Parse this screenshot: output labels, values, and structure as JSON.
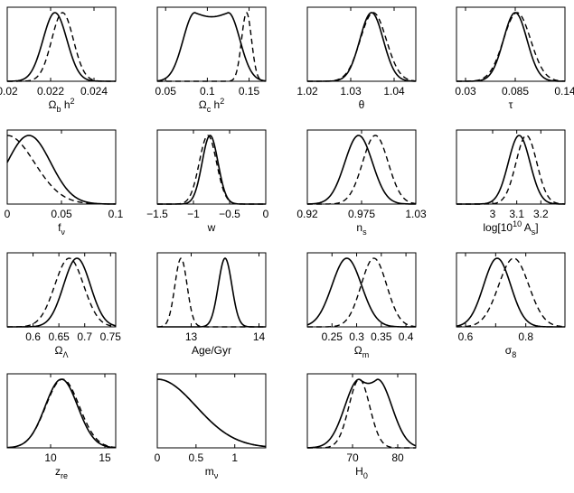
{
  "chart_data": {
    "type": "line",
    "description_series": [
      {
        "name": "",
        "style": "solid",
        "color": "#000000"
      },
      {
        "name": "",
        "style": "dashed",
        "color": "#000000"
      }
    ],
    "panels": [
      {
        "id": "omega-b-h2",
        "xlabel": "Ω_b h^2",
        "xlim": [
          0.02,
          0.025
        ],
        "ticks": [
          0.02,
          0.022,
          0.024
        ],
        "tick_labels": [
          "0.02",
          "0.022",
          "0.024"
        ],
        "solid": {
          "mu": 0.0222,
          "sigma": 0.00055
        },
        "dashed": {
          "mu": 0.02255,
          "sigma": 0.0005
        }
      },
      {
        "id": "omega-c-h2",
        "xlabel": "Ω_c h^2",
        "xlim": [
          0.04,
          0.17
        ],
        "ticks": [
          0.05,
          0.1,
          0.15
        ],
        "tick_labels": [
          "0.05",
          "0.1",
          "0.15"
        ],
        "solid": {
          "plateau": [
            0.085,
            0.125
          ],
          "sigma": 0.014
        },
        "dashed": {
          "mu": 0.147,
          "sigma": 0.006
        }
      },
      {
        "id": "theta",
        "xlabel": "θ",
        "xlim": [
          1.02,
          1.045
        ],
        "ticks": [
          1.02,
          1.03,
          1.04
        ],
        "tick_labels": [
          "1.02",
          "1.03",
          "1.04"
        ],
        "solid": {
          "mu": 1.0348,
          "sigma": 0.0027
        },
        "dashed": {
          "mu": 1.0352,
          "sigma": 0.003
        }
      },
      {
        "id": "tau",
        "xlabel": "τ",
        "xlim": [
          0.02,
          0.14
        ],
        "ticks": [
          0.03,
          0.085,
          0.14
        ],
        "tick_labels": [
          "0.03",
          "0.085",
          "0.14"
        ],
        "solid": {
          "mu": 0.085,
          "sigma": 0.013
        },
        "dashed": {
          "mu": 0.087,
          "sigma": 0.015
        }
      },
      {
        "id": "f-nu",
        "xlabel": "f_ν",
        "xlim": [
          0,
          0.1
        ],
        "ticks": [
          0,
          0.05,
          0.1
        ],
        "tick_labels": [
          "0",
          "0.05",
          "0.1"
        ],
        "solid": {
          "mu": 0.02,
          "sigma": 0.02
        },
        "dashed": {
          "mu": 0.0,
          "sigma": 0.025
        }
      },
      {
        "id": "w",
        "xlabel": "w",
        "xlim": [
          -1.5,
          0
        ],
        "ticks": [
          -1.5,
          -1,
          -0.5,
          0
        ],
        "tick_labels": [
          "−1.5",
          "−1",
          "−0.5",
          "0"
        ],
        "solid": {
          "mu": -0.77,
          "sigma": 0.11
        },
        "dashed": {
          "mu": -0.8,
          "sigma": 0.12
        }
      },
      {
        "id": "n-s",
        "xlabel": "n_s",
        "xlim": [
          0.92,
          1.03
        ],
        "ticks": [
          0.92,
          0.975,
          1.03
        ],
        "tick_labels": [
          "0.92",
          "0.975",
          "1.03"
        ],
        "solid": {
          "mu": 0.972,
          "sigma": 0.014
        },
        "dashed": {
          "mu": 0.989,
          "sigma": 0.013
        }
      },
      {
        "id": "log-as",
        "xlabel": "log[10^10 A_s]",
        "xlim": [
          2.85,
          3.3
        ],
        "ticks": [
          3.0,
          3.1,
          3.2
        ],
        "tick_labels": [
          "3",
          "3.1",
          "3.2"
        ],
        "solid": {
          "mu": 3.11,
          "sigma": 0.045
        },
        "dashed": {
          "mu": 3.14,
          "sigma": 0.043
        }
      },
      {
        "id": "omega-lambda",
        "xlabel": "Ω_Λ",
        "xlim": [
          0.55,
          0.76
        ],
        "ticks": [
          0.6,
          0.65,
          0.7,
          0.75
        ],
        "tick_labels": [
          "0.6",
          "0.65",
          "0.7",
          "0.75"
        ],
        "solid": {
          "mu": 0.685,
          "sigma": 0.026
        },
        "dashed": {
          "mu": 0.67,
          "sigma": 0.028
        }
      },
      {
        "id": "age",
        "xlabel": "Age/Gyr",
        "xlim": [
          12.5,
          14.1
        ],
        "ticks": [
          13,
          14
        ],
        "tick_labels": [
          "13",
          "14"
        ],
        "solid": {
          "mu": 13.5,
          "sigma": 0.1
        },
        "dashed": {
          "mu": 12.85,
          "sigma": 0.09
        }
      },
      {
        "id": "omega-m",
        "xlabel": "Ω_m",
        "xlim": [
          0.2,
          0.42
        ],
        "ticks": [
          0.25,
          0.3,
          0.35,
          0.4
        ],
        "tick_labels": [
          "0.25",
          "0.3",
          "0.35",
          "0.4"
        ],
        "solid": {
          "mu": 0.28,
          "sigma": 0.03
        },
        "dashed": {
          "mu": 0.335,
          "sigma": 0.026
        }
      },
      {
        "id": "sigma-8",
        "xlabel": "σ_8",
        "xlim": [
          0.57,
          0.93
        ],
        "ticks": [
          0.6,
          0.7,
          0.8
        ],
        "tick_labels": [
          "0.6",
          "",
          "0.8"
        ],
        "solid": {
          "mu": 0.705,
          "sigma": 0.045
        },
        "dashed": {
          "mu": 0.76,
          "sigma": 0.05
        }
      },
      {
        "id": "z-re",
        "xlabel": "z_re",
        "xlim": [
          6,
          16
        ],
        "ticks": [
          10,
          15
        ],
        "tick_labels": [
          "10",
          "15"
        ],
        "solid": {
          "mu": 11.0,
          "sigma": 1.5
        },
        "dashed": {
          "mu": 11.1,
          "sigma": 1.55
        }
      },
      {
        "id": "m-nu",
        "xlabel": "m_ν",
        "xlim": [
          0,
          1.4
        ],
        "ticks": [
          0,
          0.5,
          1
        ],
        "tick_labels": [
          "0",
          "0.5",
          "1"
        ],
        "solid": {
          "mu": 0.0,
          "sigma": 0.5
        },
        "dashed": {
          "mu": 0.0,
          "sigma": 0.5
        }
      },
      {
        "id": "h0",
        "xlabel": "H_0",
        "xlim": [
          60,
          84
        ],
        "ticks": [
          70,
          80
        ],
        "tick_labels": [
          "70",
          "80"
        ],
        "solid": {
          "plateau": [
            71.5,
            75.5
          ],
          "sigma": 3.2
        },
        "dashed": {
          "mu": 71.5,
          "sigma": 2.3
        }
      }
    ]
  }
}
